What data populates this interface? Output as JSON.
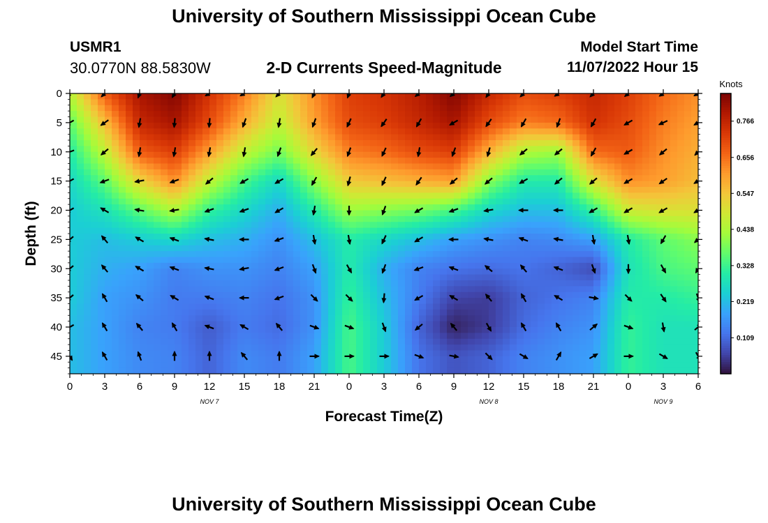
{
  "header": {
    "title": "University of Southern Mississippi Ocean Cube",
    "station_id": "USMR1",
    "coords": "30.0770N  88.5830W",
    "subtitle": "2-D Currents Speed-Magnitude",
    "start_label": "Model Start Time",
    "start_value": "11/07/2022 Hour 15"
  },
  "footer": {
    "title": "University of Southern Mississippi Ocean Cube"
  },
  "chart_data": {
    "type": "heatmap",
    "xlabel": "Forecast Time(Z)",
    "ylabel": "Depth (ft)",
    "x_tick_labels": [
      "0",
      "3",
      "6",
      "9",
      "12",
      "15",
      "18",
      "21",
      "0",
      "3",
      "6",
      "9",
      "12",
      "15",
      "18",
      "21",
      "0",
      "3",
      "6"
    ],
    "date_labels": [
      {
        "label": "NOV 7",
        "tick_index": 4
      },
      {
        "label": "NOV 8",
        "tick_index": 12
      },
      {
        "label": "NOV 9",
        "tick_index": 17
      }
    ],
    "x_range_hours": [
      0,
      54
    ],
    "y_ticks": [
      0,
      5,
      10,
      15,
      20,
      25,
      30,
      35,
      40,
      45
    ],
    "ylim": [
      0,
      48
    ],
    "colorbar": {
      "title": "Knots",
      "tick_labels": [
        "0.766",
        "0.656",
        "0.547",
        "0.438",
        "0.328",
        "0.219",
        "0.109"
      ],
      "range": [
        0.0,
        0.85
      ],
      "colors": [
        "#30123b",
        "#4145ab",
        "#4675ed",
        "#39a2fc",
        "#1bcfd4",
        "#24eca6",
        "#61fc6c",
        "#a4fc3b",
        "#d1e834",
        "#f3c63a",
        "#fe9b2d",
        "#f36315",
        "#d93806",
        "#b11901",
        "#7a0403"
      ]
    },
    "depth_levels": [
      0,
      5,
      10,
      15,
      20,
      25,
      30,
      35,
      40,
      45
    ],
    "times": [
      0,
      3,
      6,
      9,
      12,
      15,
      18,
      21,
      24,
      27,
      30,
      33,
      36,
      39,
      42,
      45,
      48,
      51,
      54
    ],
    "speed": [
      [
        0.45,
        0.68,
        0.8,
        0.84,
        0.74,
        0.64,
        0.5,
        0.62,
        0.72,
        0.74,
        0.78,
        0.84,
        0.76,
        0.7,
        0.72,
        0.76,
        0.72,
        0.66,
        0.62
      ],
      [
        0.36,
        0.56,
        0.76,
        0.8,
        0.7,
        0.58,
        0.46,
        0.6,
        0.7,
        0.72,
        0.76,
        0.8,
        0.7,
        0.64,
        0.66,
        0.74,
        0.7,
        0.64,
        0.6
      ],
      [
        0.3,
        0.46,
        0.68,
        0.72,
        0.6,
        0.46,
        0.38,
        0.52,
        0.64,
        0.66,
        0.7,
        0.72,
        0.58,
        0.44,
        0.42,
        0.66,
        0.68,
        0.62,
        0.58
      ],
      [
        0.26,
        0.36,
        0.52,
        0.62,
        0.46,
        0.34,
        0.26,
        0.4,
        0.54,
        0.56,
        0.58,
        0.6,
        0.4,
        0.3,
        0.3,
        0.5,
        0.62,
        0.6,
        0.56
      ],
      [
        0.24,
        0.28,
        0.36,
        0.44,
        0.32,
        0.26,
        0.2,
        0.3,
        0.42,
        0.4,
        0.38,
        0.34,
        0.26,
        0.22,
        0.22,
        0.32,
        0.48,
        0.5,
        0.5
      ],
      [
        0.24,
        0.22,
        0.24,
        0.26,
        0.22,
        0.2,
        0.16,
        0.22,
        0.3,
        0.26,
        0.22,
        0.18,
        0.16,
        0.14,
        0.15,
        0.18,
        0.3,
        0.36,
        0.4
      ],
      [
        0.24,
        0.2,
        0.18,
        0.14,
        0.16,
        0.16,
        0.14,
        0.18,
        0.3,
        0.2,
        0.14,
        0.12,
        0.11,
        0.12,
        0.1,
        0.07,
        0.28,
        0.34,
        0.36
      ],
      [
        0.24,
        0.18,
        0.16,
        0.13,
        0.13,
        0.14,
        0.12,
        0.16,
        0.32,
        0.22,
        0.13,
        0.06,
        0.05,
        0.1,
        0.12,
        0.14,
        0.3,
        0.3,
        0.32
      ],
      [
        0.22,
        0.18,
        0.14,
        0.13,
        0.09,
        0.13,
        0.11,
        0.16,
        0.34,
        0.24,
        0.1,
        0.02,
        0.05,
        0.11,
        0.14,
        0.16,
        0.32,
        0.28,
        0.28
      ],
      [
        0.22,
        0.18,
        0.15,
        0.14,
        0.1,
        0.15,
        0.13,
        0.18,
        0.34,
        0.24,
        0.12,
        0.08,
        0.1,
        0.14,
        0.16,
        0.18,
        0.32,
        0.28,
        0.28
      ]
    ],
    "direction_deg": [
      [
        225,
        225,
        200,
        210,
        240,
        240,
        225,
        205,
        200,
        215,
        230,
        230,
        215,
        225,
        235,
        225,
        230,
        235,
        240
      ],
      [
        240,
        235,
        190,
        185,
        185,
        200,
        190,
        200,
        205,
        215,
        210,
        240,
        215,
        210,
        200,
        210,
        240,
        245,
        240
      ],
      [
        250,
        230,
        190,
        190,
        190,
        190,
        200,
        220,
        200,
        205,
        190,
        200,
        195,
        230,
        230,
        210,
        240,
        230,
        225
      ],
      [
        240,
        250,
        260,
        250,
        230,
        240,
        240,
        210,
        195,
        205,
        215,
        230,
        230,
        240,
        230,
        230,
        240,
        235,
        240
      ],
      [
        240,
        300,
        280,
        260,
        250,
        250,
        240,
        190,
        180,
        200,
        240,
        250,
        260,
        270,
        270,
        240,
        240,
        240,
        240
      ],
      [
        230,
        320,
        300,
        290,
        280,
        270,
        250,
        170,
        170,
        205,
        240,
        270,
        280,
        290,
        280,
        170,
        170,
        210,
        230
      ],
      [
        230,
        320,
        300,
        290,
        280,
        260,
        250,
        160,
        150,
        200,
        250,
        290,
        310,
        320,
        290,
        160,
        180,
        150,
        210
      ],
      [
        230,
        330,
        310,
        300,
        290,
        270,
        250,
        135,
        135,
        185,
        240,
        300,
        320,
        330,
        300,
        100,
        135,
        145,
        160
      ],
      [
        240,
        330,
        320,
        330,
        290,
        300,
        320,
        110,
        110,
        160,
        230,
        320,
        150,
        330,
        330,
        50,
        110,
        170,
        50
      ],
      [
        150,
        330,
        340,
        0,
        0,
        320,
        0,
        90,
        90,
        90,
        110,
        100,
        135,
        120,
        30,
        60,
        90,
        120,
        150
      ]
    ]
  }
}
